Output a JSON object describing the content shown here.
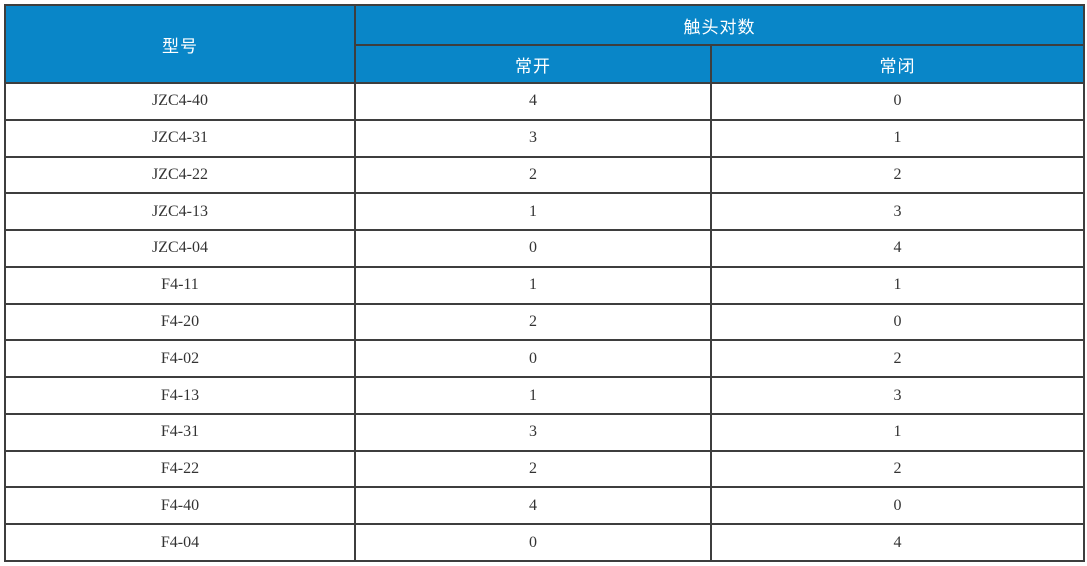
{
  "table": {
    "headers": {
      "model": "型号",
      "contact_pairs": "触头对数",
      "normally_open": "常开",
      "normally_closed": "常闭"
    },
    "rows": [
      {
        "model": "JZC4-40",
        "no": "4",
        "nc": "0"
      },
      {
        "model": "JZC4-31",
        "no": "3",
        "nc": "1"
      },
      {
        "model": "JZC4-22",
        "no": "2",
        "nc": "2"
      },
      {
        "model": "JZC4-13",
        "no": "1",
        "nc": "3"
      },
      {
        "model": "JZC4-04",
        "no": "0",
        "nc": "4"
      },
      {
        "model": "F4-11",
        "no": "1",
        "nc": "1"
      },
      {
        "model": "F4-20",
        "no": "2",
        "nc": "0"
      },
      {
        "model": "F4-02",
        "no": "0",
        "nc": "2"
      },
      {
        "model": "F4-13",
        "no": "1",
        "nc": "3"
      },
      {
        "model": "F4-31",
        "no": "3",
        "nc": "1"
      },
      {
        "model": "F4-22",
        "no": "2",
        "nc": "2"
      },
      {
        "model": "F4-40",
        "no": "4",
        "nc": "0"
      },
      {
        "model": "F4-04",
        "no": "0",
        "nc": "4"
      }
    ]
  },
  "colors": {
    "header_bg": "#0986c8",
    "header_text": "#ffffff",
    "border": "#3e3e3e",
    "outer_border": "#000000",
    "cell_text": "#333333"
  }
}
